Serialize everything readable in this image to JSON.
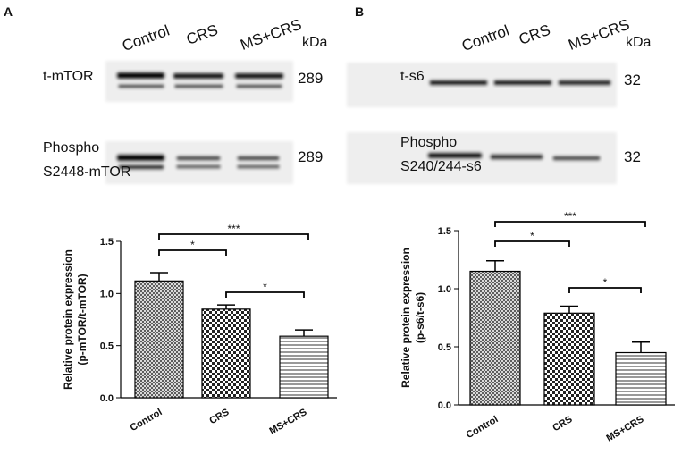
{
  "panels": [
    {
      "letter": "A",
      "lanes": [
        "Control",
        "CRS",
        "MS+CRS"
      ],
      "unit": "kDa",
      "blots": [
        {
          "label": [
            "t-mTOR"
          ],
          "kda": "289"
        },
        {
          "label": [
            "Phospho",
            "S2448-mTOR"
          ],
          "kda": "289"
        }
      ]
    },
    {
      "letter": "B",
      "lanes": [
        "Control",
        "CRS",
        "MS+CRS"
      ],
      "unit": "kDa",
      "blots": [
        {
          "label": [
            "t-s6"
          ],
          "kda": "32"
        },
        {
          "label": [
            "Phospho",
            "S240/244-s6"
          ],
          "kda": "32"
        }
      ]
    }
  ],
  "chart_data": [
    {
      "type": "bar",
      "y_label": [
        "Relative protein expression",
        "(p-mTOR/t-mTOR)"
      ],
      "categories": [
        "Control",
        "CRS",
        "MS+CRS"
      ],
      "values": [
        1.12,
        0.85,
        0.59
      ],
      "errors": [
        0.08,
        0.04,
        0.06
      ],
      "ylim": [
        0,
        1.5
      ],
      "yticks": [
        {
          "value": 0,
          "label": "0.0"
        },
        0.5,
        {
          "value": 1,
          "label": "1.0"
        },
        1.5
      ],
      "significance": [
        {
          "from": 0,
          "to": 2,
          "label": "***"
        },
        {
          "from": 0,
          "to": 1,
          "label": "*"
        },
        {
          "from": 1,
          "to": 2,
          "label": "*"
        }
      ]
    },
    {
      "type": "bar",
      "y_label": [
        "Relative protein expression",
        "(p-s6/t-s6)"
      ],
      "categories": [
        "Control",
        "CRS",
        "MS+CRS"
      ],
      "values": [
        1.15,
        0.79,
        0.45
      ],
      "errors": [
        0.09,
        0.06,
        0.09
      ],
      "ylim": [
        0,
        1.5
      ],
      "yticks": [
        {
          "value": 0,
          "label": "0.0"
        },
        0.5,
        {
          "value": 1,
          "label": "1.0"
        },
        1.5
      ],
      "significance": [
        {
          "from": 0,
          "to": 2,
          "label": "***"
        },
        {
          "from": 0,
          "to": 1,
          "label": "*"
        },
        {
          "from": 1,
          "to": 2,
          "label": "*"
        }
      ]
    }
  ]
}
